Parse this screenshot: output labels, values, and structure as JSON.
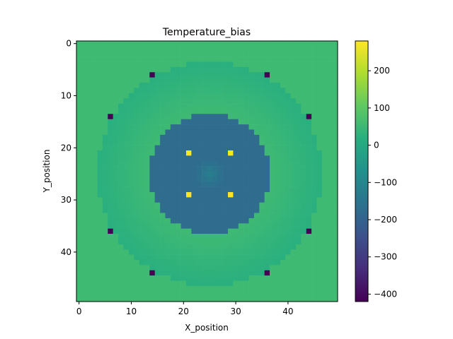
{
  "chart_data": {
    "type": "heatmap",
    "title": "Temperature_bias",
    "xlabel": "X_position",
    "ylabel": "Y_position",
    "grid_size": 50,
    "xlim": [
      -0.5,
      49.5
    ],
    "ylim": [
      49.5,
      -0.5
    ],
    "y_axis_inverted": true,
    "xticks": [
      0,
      10,
      20,
      30,
      40
    ],
    "yticks": [
      0,
      10,
      20,
      30,
      40
    ],
    "colormap": "viridis",
    "colorbar": {
      "vmin": -420,
      "vmax": 280,
      "ticks": [
        200,
        100,
        0,
        -100,
        -200,
        -300,
        -400
      ],
      "tick_labels": [
        "200",
        "100",
        "0",
        "−100",
        "−200",
        "−300",
        "−400"
      ]
    },
    "field_model": {
      "description_values": "Approximate temperature bias by radius from center (25,25)",
      "center": [
        25,
        25
      ],
      "outer_value": 55,
      "ring_outer_radius": 21.5,
      "ring_value_outer": 20,
      "ring_value_inner": 55,
      "disk_radius": 11.5,
      "disk_value": -175,
      "core_value": -120,
      "core_radius": 3
    },
    "hot_spots": [
      {
        "x": 21,
        "y": 21,
        "value": 280
      },
      {
        "x": 29,
        "y": 21,
        "value": 280
      },
      {
        "x": 21,
        "y": 29,
        "value": 280
      },
      {
        "x": 29,
        "y": 29,
        "value": 280
      }
    ],
    "cold_spots": [
      {
        "x": 14,
        "y": 6,
        "value": -420
      },
      {
        "x": 36,
        "y": 6,
        "value": -420
      },
      {
        "x": 6,
        "y": 14,
        "value": -420
      },
      {
        "x": 44,
        "y": 14,
        "value": -420
      },
      {
        "x": 6,
        "y": 36,
        "value": -420
      },
      {
        "x": 44,
        "y": 36,
        "value": -420
      },
      {
        "x": 14,
        "y": 44,
        "value": -420
      },
      {
        "x": 36,
        "y": 44,
        "value": -420
      }
    ]
  }
}
